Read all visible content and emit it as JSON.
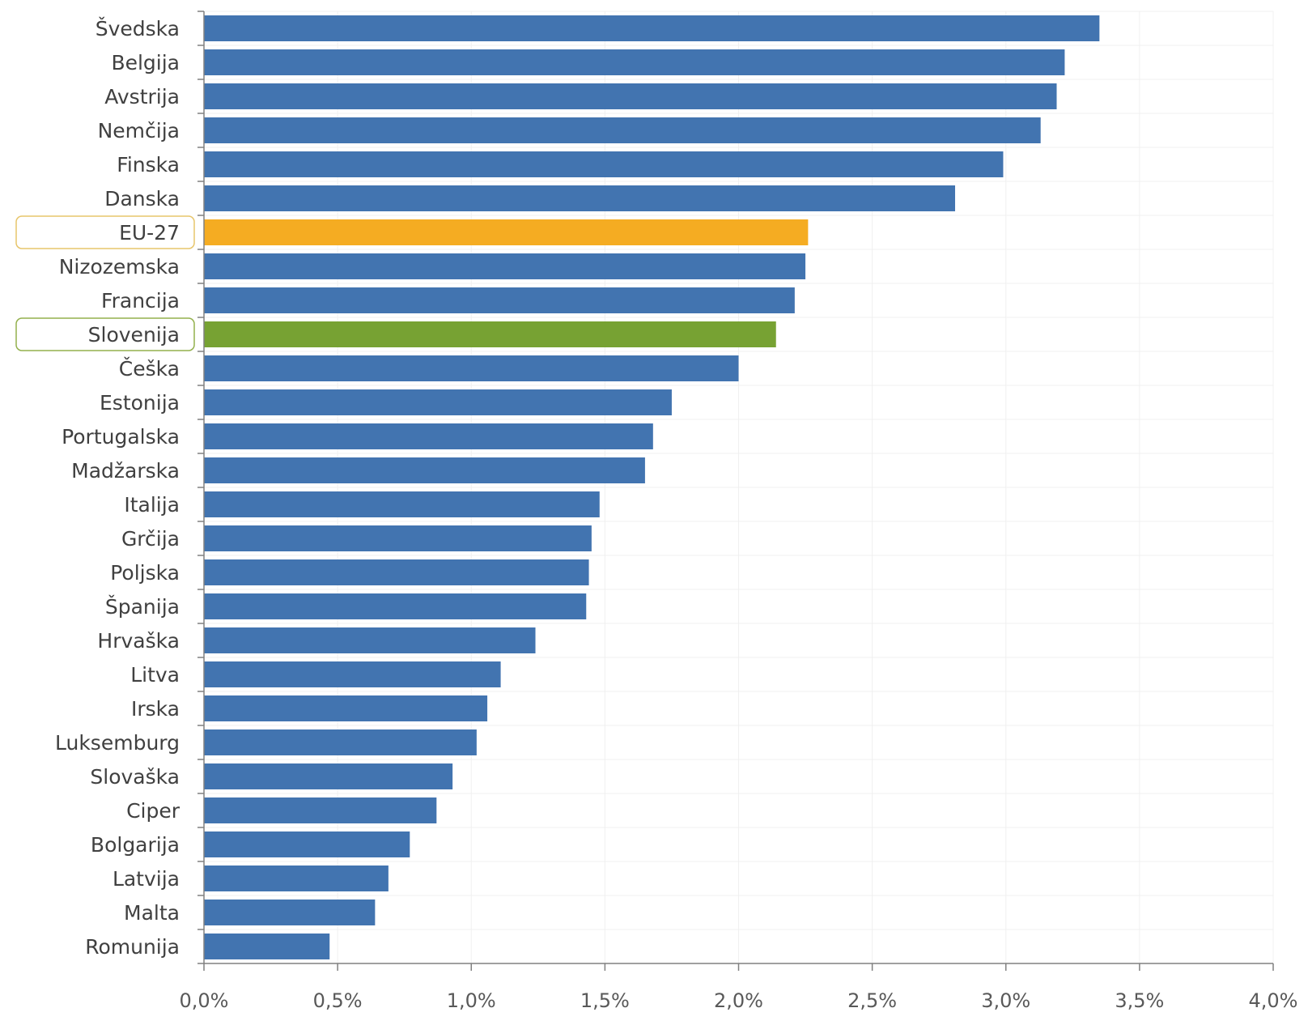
{
  "chart_data": {
    "type": "bar",
    "orientation": "horizontal",
    "categories": [
      "Švedska",
      "Belgija",
      "Avstrija",
      "Nemčija",
      "Finska",
      "Danska",
      "EU-27",
      "Nizozemska",
      "Francija",
      "Slovenija",
      "Češka",
      "Estonija",
      "Portugalska",
      "Madžarska",
      "Italija",
      "Grčija",
      "Poljska",
      "Španija",
      "Hrvaška",
      "Litva",
      "Irska",
      "Luksemburg",
      "Slovaška",
      "Ciper",
      "Bolgarija",
      "Latvija",
      "Malta",
      "Romunija"
    ],
    "values": [
      3.35,
      3.22,
      3.19,
      3.13,
      2.99,
      2.81,
      2.26,
      2.25,
      2.21,
      2.14,
      2.0,
      1.75,
      1.68,
      1.65,
      1.48,
      1.45,
      1.44,
      1.43,
      1.24,
      1.11,
      1.06,
      1.02,
      0.93,
      0.87,
      0.77,
      0.69,
      0.64,
      0.47
    ],
    "title": "",
    "xlabel": "",
    "ylabel": "",
    "xlim": [
      0,
      4
    ],
    "xticks": [
      0,
      0.5,
      1,
      1.5,
      2,
      2.5,
      3,
      3.5,
      4
    ],
    "xtick_labels": [
      "0,0%",
      "0,5%",
      "1,0%",
      "1,5%",
      "2,0%",
      "2,5%",
      "3,0%",
      "3,5%",
      "4,0%"
    ],
    "grid": true,
    "legend": "none",
    "highlighted": {
      "EU-27": "highlight-eu",
      "Slovenija": "highlight-si"
    },
    "colors": {
      "default": "#4274b0",
      "highlight-eu": "#f5ac22",
      "highlight-si": "#77a233",
      "label_box_eu": "#e7c56b",
      "label_box_si": "#93b04d",
      "axis": "#808080",
      "grid": "#f0f0f0"
    }
  }
}
